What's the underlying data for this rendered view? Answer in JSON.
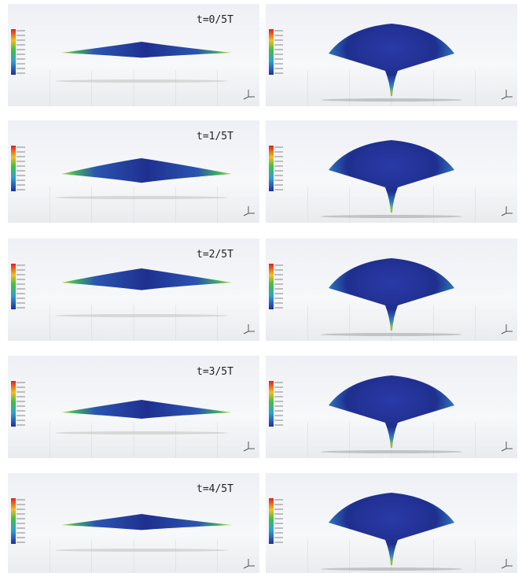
{
  "panels": [
    {
      "label": "t=0/5T"
    },
    {
      "label": "t=1/5T"
    },
    {
      "label": "t=2/5T"
    },
    {
      "label": "t=3/5T"
    },
    {
      "label": "t=4/5T"
    }
  ]
}
